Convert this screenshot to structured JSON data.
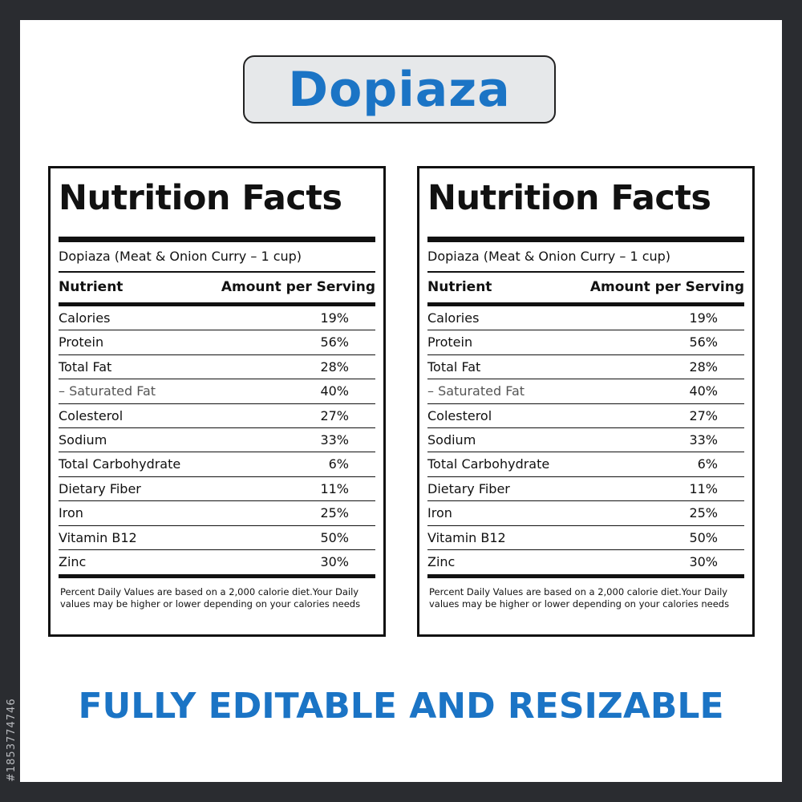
{
  "title": "Dopiaza",
  "stock_id": "#1853774746",
  "labels": [
    {
      "heading": "Nutrition Facts",
      "serving": "Dopiaza (Meat & Onion Curry – 1 cup)",
      "col_nutrient": "Nutrient",
      "col_amount": "Amount per Serving",
      "rows": [
        {
          "name": "Calories",
          "value": "19%"
        },
        {
          "name": "Protein",
          "value": "56%"
        },
        {
          "name": "Total Fat",
          "value": "28%"
        },
        {
          "name": "– Saturated Fat",
          "value": "40%"
        },
        {
          "name": "Colesterol",
          "value": "27%"
        },
        {
          "name": "Sodium",
          "value": "33%"
        },
        {
          "name": "Total Carbohydrate",
          "value": "6%"
        },
        {
          "name": "Dietary Fiber",
          "value": "11%"
        },
        {
          "name": "Iron",
          "value": "25%"
        },
        {
          "name": "Vitamin B12",
          "value": "50%"
        },
        {
          "name": "Zinc",
          "value": "30%"
        }
      ],
      "footnote": "Percent Daily Values are based on a 2,000 calorie diet.Your Daily values may be higher or lower depending on your calories needs"
    },
    {
      "heading": "Nutrition Facts",
      "serving": "Dopiaza (Meat & Onion Curry – 1 cup)",
      "col_nutrient": "Nutrient",
      "col_amount": "Amount per Serving",
      "rows": [
        {
          "name": "Calories",
          "value": "19%"
        },
        {
          "name": "Protein",
          "value": "56%"
        },
        {
          "name": "Total Fat",
          "value": "28%"
        },
        {
          "name": "– Saturated Fat",
          "value": "40%"
        },
        {
          "name": "Colesterol",
          "value": "27%"
        },
        {
          "name": "Sodium",
          "value": "33%"
        },
        {
          "name": "Total Carbohydrate",
          "value": "6%"
        },
        {
          "name": "Dietary Fiber",
          "value": "11%"
        },
        {
          "name": "Iron",
          "value": "25%"
        },
        {
          "name": "Vitamin B12",
          "value": "50%"
        },
        {
          "name": "Zinc",
          "value": "30%"
        }
      ],
      "footnote": "Percent Daily Values are based on a 2,000 calorie diet.Your Daily values may be higher or lower depending on your calories needs"
    }
  ],
  "bottom_text": "FULLY EDITABLE AND RESIZABLE",
  "colors": {
    "accent": "#1b74c5",
    "frame": "#2a2c30",
    "pill_bg": "#e6e8ea"
  }
}
